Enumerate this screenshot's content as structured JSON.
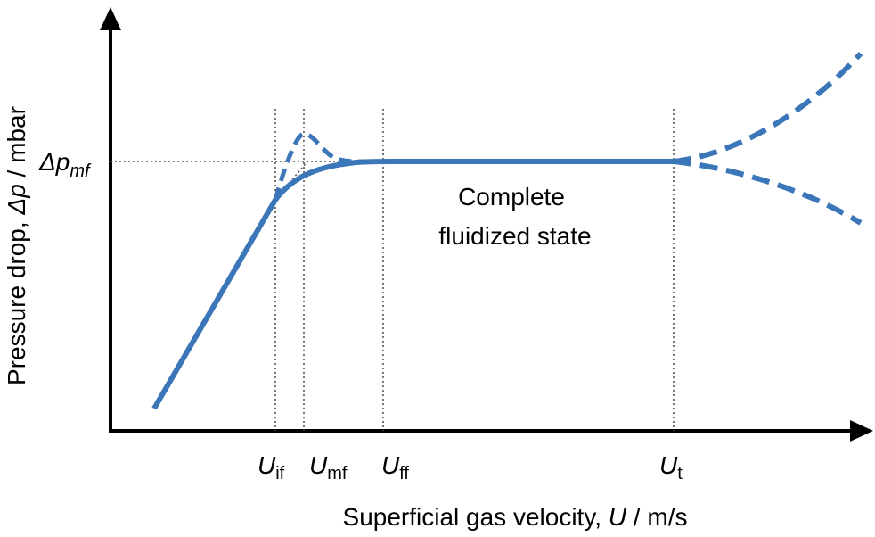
{
  "diagram": {
    "y_axis_label_prefix": "Pressure drop, ",
    "y_axis_label_italic": "Δp",
    "y_axis_label_suffix": " / mbar",
    "x_axis_label_prefix": "Superficial gas velocity, ",
    "x_axis_label_italic": "U",
    "x_axis_label_suffix": " / m/s",
    "delta_p_mf_main": "Δp",
    "delta_p_mf_sub": "mf",
    "velocity_markers": [
      {
        "main": "U",
        "sub": "if"
      },
      {
        "main": "U",
        "sub": "mf"
      },
      {
        "main": "U",
        "sub": "ff"
      },
      {
        "main": "U",
        "sub": "t"
      }
    ],
    "region_label_line1": "Complete",
    "region_label_line2": "fluidized state",
    "colors": {
      "curve": "#3a76b8",
      "axis": "#000000",
      "guide": "#555555"
    }
  }
}
